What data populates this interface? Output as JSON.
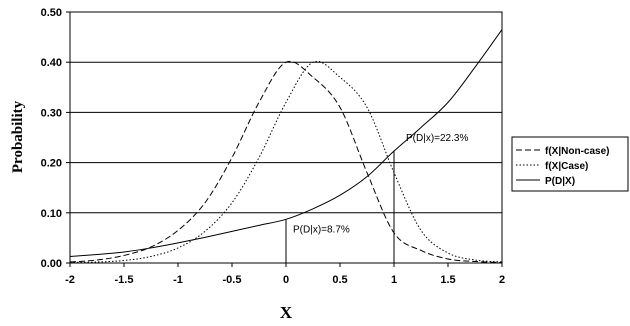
{
  "chart_data": {
    "type": "line",
    "xlabel": "X",
    "ylabel": "Probability",
    "xlim": [
      -2,
      2
    ],
    "ylim": [
      0,
      0.5
    ],
    "x_ticks": [
      "-2",
      "-1.5",
      "-1",
      "-0.5",
      "0",
      "0.5",
      "1",
      "1.5",
      "2"
    ],
    "y_ticks": [
      "0.00",
      "0.10",
      "0.20",
      "0.30",
      "0.40",
      "0.50"
    ],
    "grid": "horizontal",
    "legend_position": "right",
    "x": [
      -2,
      -1.75,
      -1.5,
      -1.25,
      -1,
      -0.75,
      -0.5,
      -0.25,
      0,
      0.25,
      0.5,
      0.75,
      1,
      1.25,
      1.5,
      1.75,
      2
    ],
    "series": [
      {
        "name": "f(X|Non-case)",
        "style": "dashed",
        "values": [
          0.002,
          0.006,
          0.015,
          0.032,
          0.065,
          0.12,
          0.21,
          0.32,
          0.4,
          0.37,
          0.31,
          0.18,
          0.06,
          0.025,
          0.008,
          0.003,
          0.001
        ]
      },
      {
        "name": "f(X|Case)",
        "style": "dotted",
        "values": [
          0.001,
          0.002,
          0.005,
          0.013,
          0.03,
          0.063,
          0.12,
          0.21,
          0.32,
          0.4,
          0.37,
          0.31,
          0.18,
          0.065,
          0.02,
          0.006,
          0.002
        ]
      },
      {
        "name": "P(D|X)",
        "style": "solid",
        "values": [
          0.013,
          0.017,
          0.022,
          0.03,
          0.04,
          0.051,
          0.063,
          0.075,
          0.087,
          0.108,
          0.135,
          0.172,
          0.223,
          0.27,
          0.32,
          0.39,
          0.465
        ]
      }
    ],
    "annotations": [
      {
        "text": "P(D|x)=8.7%",
        "x": 0,
        "y": 0.087
      },
      {
        "text": "P(D|x)=22.3%",
        "x": 1,
        "y": 0.223
      }
    ]
  }
}
